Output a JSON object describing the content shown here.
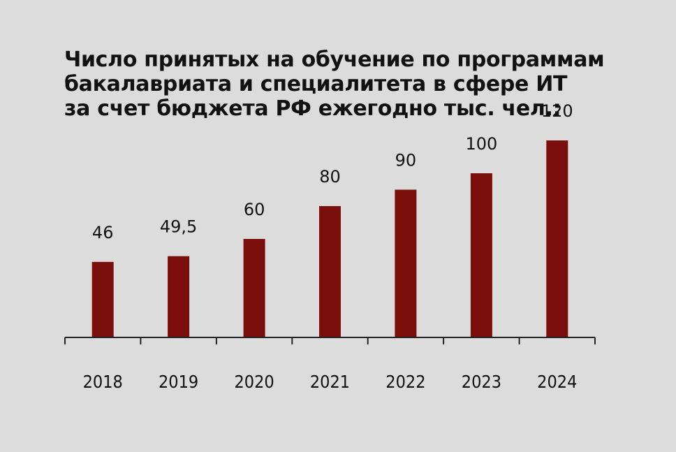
{
  "chart_data": {
    "type": "bar",
    "title_lines": [
      "Число принятых на обучение по программам",
      "бакалавриата и специалитета в сфере ИТ",
      "за счет бюджета РФ ежегодно тыс. чел.:"
    ],
    "categories": [
      "2018",
      "2019",
      "2020",
      "2021",
      "2022",
      "2023",
      "2024"
    ],
    "values": [
      46,
      49.5,
      60,
      80,
      90,
      100,
      120
    ],
    "data_labels": [
      "46",
      "49,5",
      "60",
      "80",
      "90",
      "100",
      "120"
    ],
    "xlabel": "",
    "ylabel": "",
    "ylim": [
      0,
      130
    ],
    "grid": false,
    "legend": "none",
    "bar_color": "#7a0e0a",
    "axis_color": "#222222",
    "background": "#dcdcdc"
  }
}
